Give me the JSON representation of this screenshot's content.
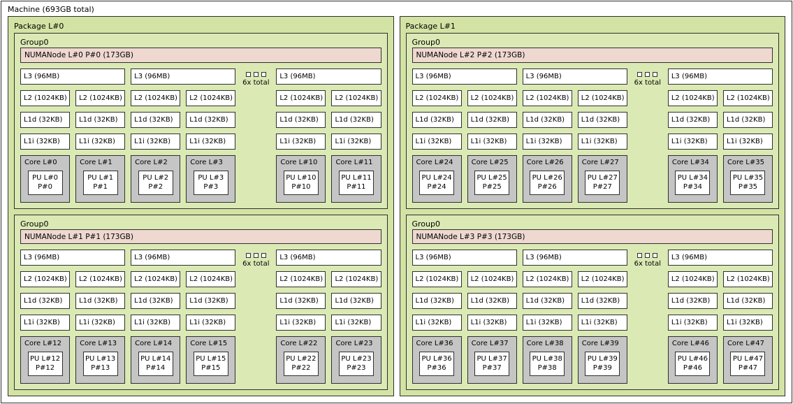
{
  "machine": {
    "label": "Machine (693GB total)"
  },
  "ellipsis_label": "6x total",
  "colors": {
    "package_fill": "#d3e3a4",
    "group_fill": "#dbe9b4",
    "numanode_fill": "#eed8d0",
    "core_fill": "#c5c5c5",
    "pu_fill": "#ffffff",
    "border": "#2f2f2f"
  },
  "packages": [
    {
      "label": "Package L#0",
      "groups": [
        {
          "label": "Group0",
          "numanode": "NUMANode L#0 P#0 (173GB)",
          "clusters": [
            {
              "kind": "l3",
              "label": "L3 (96MB)",
              "cores": [
                {
                  "l2": "L2 (1024KB)",
                  "l1d": "L1d (32KB)",
                  "l1i": "L1i (32KB)",
                  "core": "Core L#0",
                  "pu_l": "PU L#0",
                  "pu_p": "P#0"
                },
                {
                  "l2": "L2 (1024KB)",
                  "l1d": "L1d (32KB)",
                  "l1i": "L1i (32KB)",
                  "core": "Core L#1",
                  "pu_l": "PU L#1",
                  "pu_p": "P#1"
                }
              ]
            },
            {
              "kind": "l3",
              "label": "L3 (96MB)",
              "cores": [
                {
                  "l2": "L2 (1024KB)",
                  "l1d": "L1d (32KB)",
                  "l1i": "L1i (32KB)",
                  "core": "Core L#2",
                  "pu_l": "PU L#2",
                  "pu_p": "P#2"
                },
                {
                  "l2": "L2 (1024KB)",
                  "l1d": "L1d (32KB)",
                  "l1i": "L1i (32KB)",
                  "core": "Core L#3",
                  "pu_l": "PU L#3",
                  "pu_p": "P#3"
                }
              ]
            },
            {
              "kind": "gap",
              "label": "6x total"
            },
            {
              "kind": "l3",
              "label": "L3 (96MB)",
              "cores": [
                {
                  "l2": "L2 (1024KB)",
                  "l1d": "L1d (32KB)",
                  "l1i": "L1i (32KB)",
                  "core": "Core L#10",
                  "pu_l": "PU L#10",
                  "pu_p": "P#10"
                },
                {
                  "l2": "L2 (1024KB)",
                  "l1d": "L1d (32KB)",
                  "l1i": "L1i (32KB)",
                  "core": "Core L#11",
                  "pu_l": "PU L#11",
                  "pu_p": "P#11"
                }
              ]
            }
          ]
        },
        {
          "label": "Group0",
          "numanode": "NUMANode L#1 P#1 (173GB)",
          "clusters": [
            {
              "kind": "l3",
              "label": "L3 (96MB)",
              "cores": [
                {
                  "l2": "L2 (1024KB)",
                  "l1d": "L1d (32KB)",
                  "l1i": "L1i (32KB)",
                  "core": "Core L#12",
                  "pu_l": "PU L#12",
                  "pu_p": "P#12"
                },
                {
                  "l2": "L2 (1024KB)",
                  "l1d": "L1d (32KB)",
                  "l1i": "L1i (32KB)",
                  "core": "Core L#13",
                  "pu_l": "PU L#13",
                  "pu_p": "P#13"
                }
              ]
            },
            {
              "kind": "l3",
              "label": "L3 (96MB)",
              "cores": [
                {
                  "l2": "L2 (1024KB)",
                  "l1d": "L1d (32KB)",
                  "l1i": "L1i (32KB)",
                  "core": "Core L#14",
                  "pu_l": "PU L#14",
                  "pu_p": "P#14"
                },
                {
                  "l2": "L2 (1024KB)",
                  "l1d": "L1d (32KB)",
                  "l1i": "L1i (32KB)",
                  "core": "Core L#15",
                  "pu_l": "PU L#15",
                  "pu_p": "P#15"
                }
              ]
            },
            {
              "kind": "gap",
              "label": "6x total"
            },
            {
              "kind": "l3",
              "label": "L3 (96MB)",
              "cores": [
                {
                  "l2": "L2 (1024KB)",
                  "l1d": "L1d (32KB)",
                  "l1i": "L1i (32KB)",
                  "core": "Core L#22",
                  "pu_l": "PU L#22",
                  "pu_p": "P#22"
                },
                {
                  "l2": "L2 (1024KB)",
                  "l1d": "L1d (32KB)",
                  "l1i": "L1i (32KB)",
                  "core": "Core L#23",
                  "pu_l": "PU L#23",
                  "pu_p": "P#23"
                }
              ]
            }
          ]
        }
      ]
    },
    {
      "label": "Package L#1",
      "groups": [
        {
          "label": "Group0",
          "numanode": "NUMANode L#2 P#2 (173GB)",
          "clusters": [
            {
              "kind": "l3",
              "label": "L3 (96MB)",
              "cores": [
                {
                  "l2": "L2 (1024KB)",
                  "l1d": "L1d (32KB)",
                  "l1i": "L1i (32KB)",
                  "core": "Core L#24",
                  "pu_l": "PU L#24",
                  "pu_p": "P#24"
                },
                {
                  "l2": "L2 (1024KB)",
                  "l1d": "L1d (32KB)",
                  "l1i": "L1i (32KB)",
                  "core": "Core L#25",
                  "pu_l": "PU L#25",
                  "pu_p": "P#25"
                }
              ]
            },
            {
              "kind": "l3",
              "label": "L3 (96MB)",
              "cores": [
                {
                  "l2": "L2 (1024KB)",
                  "l1d": "L1d (32KB)",
                  "l1i": "L1i (32KB)",
                  "core": "Core L#26",
                  "pu_l": "PU L#26",
                  "pu_p": "P#26"
                },
                {
                  "l2": "L2 (1024KB)",
                  "l1d": "L1d (32KB)",
                  "l1i": "L1i (32KB)",
                  "core": "Core L#27",
                  "pu_l": "PU L#27",
                  "pu_p": "P#27"
                }
              ]
            },
            {
              "kind": "gap",
              "label": "6x total"
            },
            {
              "kind": "l3",
              "label": "L3 (96MB)",
              "cores": [
                {
                  "l2": "L2 (1024KB)",
                  "l1d": "L1d (32KB)",
                  "l1i": "L1i (32KB)",
                  "core": "Core L#34",
                  "pu_l": "PU L#34",
                  "pu_p": "P#34"
                },
                {
                  "l2": "L2 (1024KB)",
                  "l1d": "L1d (32KB)",
                  "l1i": "L1i (32KB)",
                  "core": "Core L#35",
                  "pu_l": "PU L#35",
                  "pu_p": "P#35"
                }
              ]
            }
          ]
        },
        {
          "label": "Group0",
          "numanode": "NUMANode L#3 P#3 (173GB)",
          "clusters": [
            {
              "kind": "l3",
              "label": "L3 (96MB)",
              "cores": [
                {
                  "l2": "L2 (1024KB)",
                  "l1d": "L1d (32KB)",
                  "l1i": "L1i (32KB)",
                  "core": "Core L#36",
                  "pu_l": "PU L#36",
                  "pu_p": "P#36"
                },
                {
                  "l2": "L2 (1024KB)",
                  "l1d": "L1d (32KB)",
                  "l1i": "L1i (32KB)",
                  "core": "Core L#37",
                  "pu_l": "PU L#37",
                  "pu_p": "P#37"
                }
              ]
            },
            {
              "kind": "l3",
              "label": "L3 (96MB)",
              "cores": [
                {
                  "l2": "L2 (1024KB)",
                  "l1d": "L1d (32KB)",
                  "l1i": "L1i (32KB)",
                  "core": "Core L#38",
                  "pu_l": "PU L#38",
                  "pu_p": "P#38"
                },
                {
                  "l2": "L2 (1024KB)",
                  "l1d": "L1d (32KB)",
                  "l1i": "L1i (32KB)",
                  "core": "Core L#39",
                  "pu_l": "PU L#39",
                  "pu_p": "P#39"
                }
              ]
            },
            {
              "kind": "gap",
              "label": "6x total"
            },
            {
              "kind": "l3",
              "label": "L3 (96MB)",
              "cores": [
                {
                  "l2": "L2 (1024KB)",
                  "l1d": "L1d (32KB)",
                  "l1i": "L1i (32KB)",
                  "core": "Core L#46",
                  "pu_l": "PU L#46",
                  "pu_p": "P#46"
                },
                {
                  "l2": "L2 (1024KB)",
                  "l1d": "L1d (32KB)",
                  "l1i": "L1i (32KB)",
                  "core": "Core L#47",
                  "pu_l": "PU L#47",
                  "pu_p": "P#47"
                }
              ]
            }
          ]
        }
      ]
    }
  ]
}
